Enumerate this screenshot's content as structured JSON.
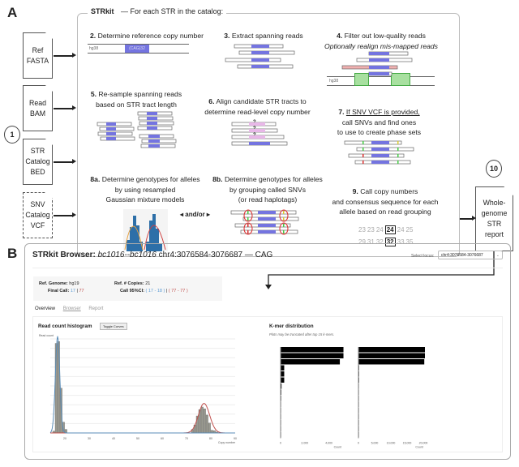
{
  "panel_a": {
    "label": "A",
    "header": {
      "title": "STRkit",
      "subtitle": "— For each STR in the catalog:"
    },
    "inputs": [
      {
        "lines": [
          "Ref",
          "FASTA"
        ],
        "optional": false
      },
      {
        "lines": [
          "Read",
          "BAM"
        ],
        "optional": false
      },
      {
        "lines": [
          "STR",
          "Catalog",
          "BED"
        ],
        "optional": false
      },
      {
        "lines": [
          "SNV",
          "Catalog",
          "VCF"
        ],
        "optional": true
      }
    ],
    "step1": "1",
    "step10": "10",
    "output_doc": [
      "Whole-",
      "genome",
      "STR",
      "report"
    ],
    "steps": {
      "s2": {
        "num": "2.",
        "text": "Determine reference copy number",
        "ref": "hg38",
        "repeat": "(CAG)32"
      },
      "s3": {
        "num": "3.",
        "text": "Extract spanning reads"
      },
      "s4": {
        "num": "4.",
        "text": "Filter out low-quality reads",
        "italic": "Optionally realign mis-mapped reads",
        "ref": "hg38"
      },
      "s5": {
        "num": "5.",
        "text1": "Re-sample spanning reads",
        "text2": "based on STR tract length"
      },
      "s6": {
        "num": "6.",
        "text1": "Align candidate STR tracts to",
        "text2": "determine read-level copy number",
        "q": "?"
      },
      "s7": {
        "num": "7.",
        "underline": "If SNV VCF is provided,",
        "text1": "call SNVs and find ones",
        "text2": "to use to create phase sets"
      },
      "s8a": {
        "num": "8a.",
        "text1": "Determine genotypes for alleles",
        "text2": "by using resampled",
        "text3": "Gaussian mixture models"
      },
      "andor": "and/or",
      "s8b": {
        "num": "8b.",
        "text1": "Determine genotypes for alleles",
        "text2": "by grouping called SNVs",
        "text3": "(or read haplotags)"
      },
      "s9": {
        "num": "9.",
        "text1": "Call copy numbers",
        "text2": "and consensus sequence for each",
        "text3": "allele based on read grouping",
        "row1": [
          "23",
          "23",
          "24",
          "24",
          "24",
          "25"
        ],
        "row1_call": 3,
        "row2": [
          "29",
          "31",
          "32",
          "32",
          "33",
          "35"
        ],
        "row2_call": 3
      }
    }
  },
  "panel_b": {
    "label": "B",
    "title_prefix": "STRkit Browser:",
    "sample": "bc1016--bc1016",
    "locus": "chr4:3076584-3076687",
    "motif": "— CAG",
    "select_label": "Select locus:",
    "select_value": "chr4:3076584-3076687",
    "info": {
      "ref_genome_label": "Ref. Genome:",
      "ref_genome": "hg19",
      "ref_copies_label": "Ref. # Copies:",
      "ref_copies": "21",
      "final_call_label": "Final Call:",
      "call1": "17",
      "sep": "|",
      "call2": "77",
      "ci_label": "Call 95%CI:",
      "ci1": "( 17 - 18 )",
      "ci2": "( 77 - 77 )"
    },
    "tabs": [
      {
        "label": "Overview",
        "active": true
      },
      {
        "label": "Browser",
        "active": false
      },
      {
        "label": "Report",
        "active": false
      }
    ],
    "hist_title": "Read count histogram",
    "toggle_button": "Toggle Curves",
    "kmer_title": "K-mer distribution",
    "kmer_note": "Plots may be truncated after top 15 k-mers.",
    "colors": {
      "allele1": "#5b8db8",
      "allele2": "#c0504d",
      "repeat": "#7474e0"
    }
  },
  "chart_data": [
    {
      "type": "bar",
      "title": "Read count histogram",
      "xlabel": "Copy number",
      "ylabel": "Read count",
      "x": [
        15,
        16,
        17,
        18,
        19,
        20,
        72,
        73,
        74,
        75,
        76,
        77,
        78,
        79,
        80,
        81,
        82
      ],
      "values": [
        20,
        1000,
        1020,
        500,
        120,
        40,
        40,
        90,
        190,
        260,
        290,
        270,
        200,
        110,
        30,
        25,
        10
      ],
      "xticks": [
        "20",
        "30",
        "40",
        "50",
        "60",
        "70",
        "80",
        "90"
      ],
      "xlim": [
        14,
        90
      ],
      "ylim": [
        0,
        1050
      ]
    },
    {
      "type": "bar",
      "title": "K-mer distribution (left)",
      "xlabel": "Count",
      "xticks": [
        "0",
        "2,000",
        "4,000"
      ],
      "values": [
        5200,
        5200,
        4900,
        300,
        300,
        300,
        80,
        60,
        50,
        40,
        30,
        20,
        15,
        10,
        8
      ],
      "xlim": [
        0,
        5500
      ]
    },
    {
      "type": "bar",
      "title": "K-mer distribution (right)",
      "xlabel": "Count",
      "xticks": [
        "0",
        "5,000",
        "10,000",
        "15,000",
        "20,000"
      ],
      "values": [
        20500,
        20500,
        20300,
        200,
        200,
        200,
        100,
        80,
        60,
        40,
        30,
        20,
        15,
        10,
        8
      ],
      "xlim": [
        0,
        22000
      ]
    }
  ]
}
